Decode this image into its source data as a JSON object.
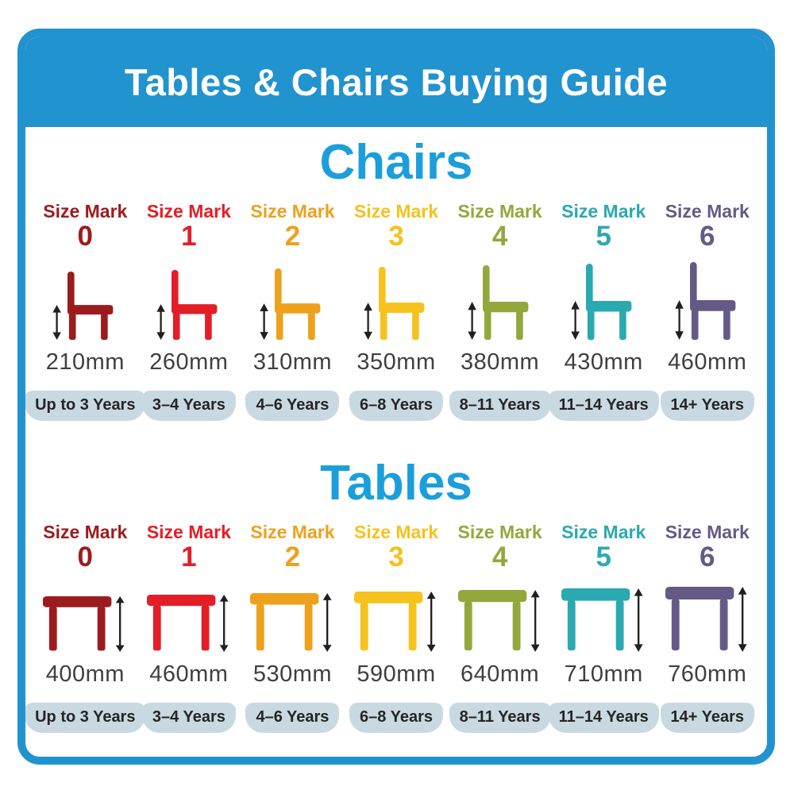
{
  "page": {
    "title": "Tables & Chairs Buying Guide",
    "colors": {
      "frame_blue": "#2193cf",
      "heading_blue": "#1b9fdb",
      "badge_bg": "#c9d9e2",
      "arrow_black": "#231f20",
      "measure_text": "#413f3e",
      "badge_text": "#262424"
    }
  },
  "chairs": {
    "heading": "Chairs",
    "icon": "chair-icon",
    "items": [
      {
        "size_label": "Size Mark",
        "size_number": "0",
        "color": "#9c1b1f",
        "height": "210mm",
        "age": "Up to 3 Years"
      },
      {
        "size_label": "Size Mark",
        "size_number": "1",
        "color": "#e41e26",
        "height": "260mm",
        "age": "3–4 Years"
      },
      {
        "size_label": "Size Mark",
        "size_number": "2",
        "color": "#eda11d",
        "height": "310mm",
        "age": "4–6 Years"
      },
      {
        "size_label": "Size Mark",
        "size_number": "3",
        "color": "#f6c21e",
        "height": "350mm",
        "age": "6–8 Years"
      },
      {
        "size_label": "Size Mark",
        "size_number": "4",
        "color": "#93a83c",
        "height": "380mm",
        "age": "8–11 Years"
      },
      {
        "size_label": "Size Mark",
        "size_number": "5",
        "color": "#2aa9b0",
        "height": "430mm",
        "age": "11–14 Years"
      },
      {
        "size_label": "Size Mark",
        "size_number": "6",
        "color": "#655a86",
        "height": "460mm",
        "age": "14+ Years"
      }
    ]
  },
  "tables": {
    "heading": "Tables",
    "icon": "table-icon",
    "items": [
      {
        "size_label": "Size Mark",
        "size_number": "0",
        "color": "#9c1b1f",
        "height": "400mm",
        "age": "Up to 3 Years"
      },
      {
        "size_label": "Size Mark",
        "size_number": "1",
        "color": "#e41e26",
        "height": "460mm",
        "age": "3–4 Years"
      },
      {
        "size_label": "Size Mark",
        "size_number": "2",
        "color": "#eda11d",
        "height": "530mm",
        "age": "4–6 Years"
      },
      {
        "size_label": "Size Mark",
        "size_number": "3",
        "color": "#f6c21e",
        "height": "590mm",
        "age": "6–8 Years"
      },
      {
        "size_label": "Size Mark",
        "size_number": "4",
        "color": "#93a83c",
        "height": "640mm",
        "age": "8–11 Years"
      },
      {
        "size_label": "Size Mark",
        "size_number": "5",
        "color": "#2aa9b0",
        "height": "710mm",
        "age": "11–14 Years"
      },
      {
        "size_label": "Size Mark",
        "size_number": "6",
        "color": "#655a86",
        "height": "760mm",
        "age": "14+ Years"
      }
    ]
  }
}
